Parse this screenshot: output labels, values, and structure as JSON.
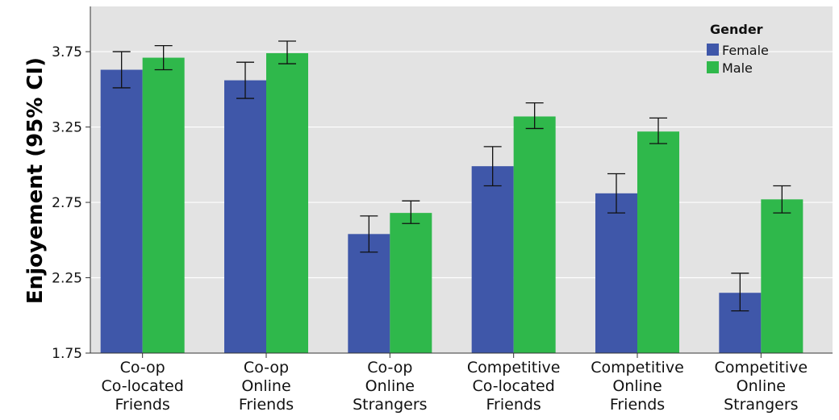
{
  "chart_data": {
    "type": "bar",
    "ylabel": "Enjoyement (95% CI)",
    "ylim": [
      1.75,
      4.05
    ],
    "yticks": [
      "1.75",
      "2.25",
      "2.75",
      "3.25",
      "3.75"
    ],
    "grid": true,
    "legend": {
      "title": "Gender",
      "placement": "top-right"
    },
    "categories": [
      [
        "Co-op",
        "Co-located",
        "Friends"
      ],
      [
        "Co-op",
        "Online",
        "Friends"
      ],
      [
        "Co-op",
        "Online",
        "Strangers"
      ],
      [
        "Competitive",
        "Co-located",
        "Friends"
      ],
      [
        "Competitive",
        "Online",
        "Friends"
      ],
      [
        "Competitive",
        "Online",
        "Strangers"
      ]
    ],
    "series": [
      {
        "name": "Female",
        "color": "#3f57a9",
        "values": [
          3.63,
          3.56,
          2.54,
          2.99,
          2.81,
          2.15
        ],
        "ci_low": [
          3.51,
          3.44,
          2.42,
          2.86,
          2.68,
          2.03
        ],
        "ci_high": [
          3.75,
          3.68,
          2.66,
          3.12,
          2.94,
          2.28
        ]
      },
      {
        "name": "Male",
        "color": "#2fb84b",
        "values": [
          3.71,
          3.74,
          2.68,
          3.32,
          3.22,
          2.77
        ],
        "ci_low": [
          3.63,
          3.67,
          2.61,
          3.24,
          3.14,
          2.68
        ],
        "ci_high": [
          3.79,
          3.82,
          2.76,
          3.41,
          3.31,
          2.86
        ]
      }
    ]
  }
}
